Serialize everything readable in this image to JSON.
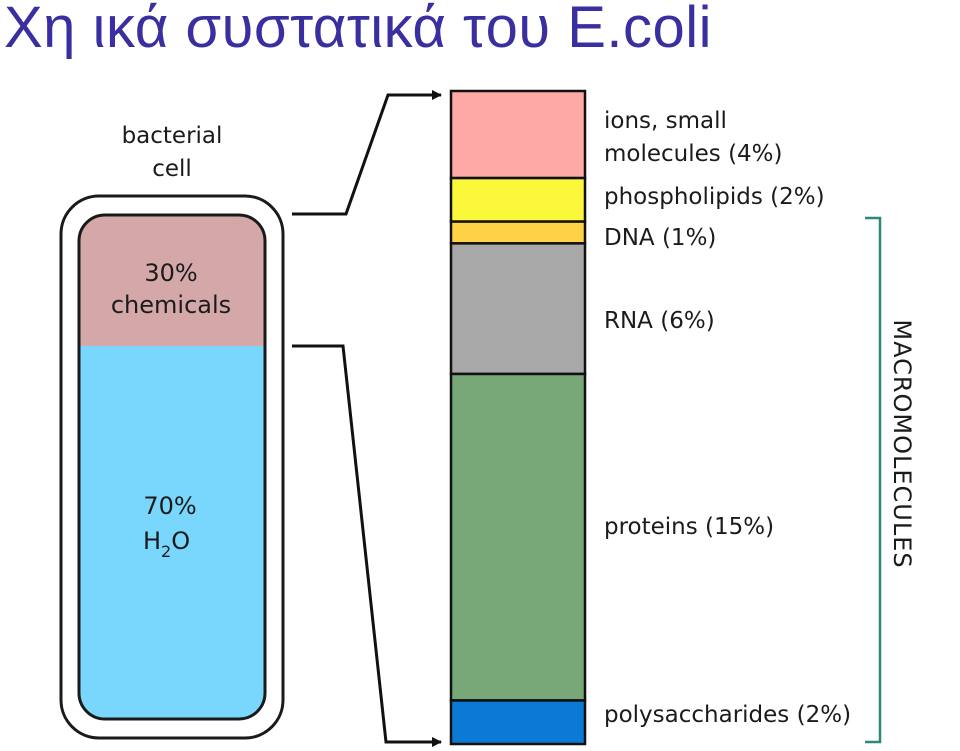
{
  "title": "Χη ικά συστατικά του E.coli",
  "cell": {
    "label_line1": "bacterial",
    "label_line2": "cell",
    "chemicals_pct": "30%",
    "chemicals_label": "chemicals",
    "water_pct": "70%",
    "water_H": "H",
    "water_sub": "2",
    "water_O": "O"
  },
  "components": [
    {
      "label_line1": "ions, small",
      "label_line2": "molecules (4%)",
      "percent": 4,
      "color": "#ffa9a6"
    },
    {
      "label_line1": "phospholipids (2%)",
      "percent": 2,
      "color": "#fbf83c"
    },
    {
      "label_line1": "DNA (1%)",
      "percent": 1,
      "color": "#ffd245"
    },
    {
      "label_line1": "RNA (6%)",
      "percent": 6,
      "color": "#a8a8a8"
    },
    {
      "label_line1": "proteins (15%)",
      "percent": 15,
      "color": "#78a878"
    },
    {
      "label_line1": "polysaccharides (2%)",
      "percent": 2,
      "color": "#0a7ad6"
    }
  ],
  "macromolecules_label": "MACROMOLECULES",
  "colors": {
    "title": "#3a2fa0",
    "chemicals_fill": "#d4a8a8",
    "water_fill": "#79d6fc",
    "bracket": "#2a8a7a"
  }
}
